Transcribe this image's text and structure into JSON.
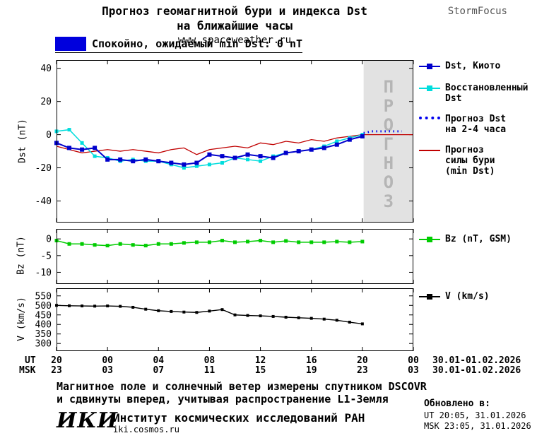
{
  "header": {
    "title_line1": "Прогноз геомагнитной бури и индекса Dst",
    "title_line2": "на ближайшие часы",
    "site": "www.spaceweather.ru",
    "brand": "StormFocus"
  },
  "status": {
    "label": "Спокойно, ожидаемый min Dst: 0 nT"
  },
  "colors": {
    "status_box": "#0000dd",
    "dst_kyoto": "#0000cc",
    "restored": "#00dddd",
    "forecast_dst": "#0000ee",
    "storm": "#c00000",
    "bz": "#00cc00",
    "v": "#000000",
    "band": "#e2e2e2",
    "band_text": "#b5b5b5"
  },
  "legend": {
    "dst_kyoto": "Dst, Киото",
    "restored_line1": "Восстановленный",
    "restored_line2": "Dst",
    "forecast_line1": "Прогноз Dst",
    "forecast_line2": "на 2-4 часа",
    "storm_line1": "Прогноз",
    "storm_line2": "силы бури",
    "storm_line3": "(min Dst)",
    "bz": "Bz (nT, GSM)",
    "v": "V (km/s)"
  },
  "xaxis": {
    "ut_label": "UT",
    "msk_label": "MSK",
    "tick_hours": [
      0,
      4,
      8,
      12,
      16,
      20,
      24,
      28
    ],
    "ut_ticks": [
      "20",
      "00",
      "04",
      "08",
      "12",
      "16",
      "20",
      "00"
    ],
    "msk_ticks": [
      "23",
      "03",
      "07",
      "11",
      "15",
      "19",
      "23",
      "03"
    ],
    "ut_date": "30.01-01.02.2026",
    "msk_date": "30.01-01.02.2026"
  },
  "footer": {
    "note_line1": "Магнитное поле и солнечный ветер измерены спутником DSCOVR",
    "note_line2": "и сдвинуты вперед, учитывая распространение L1-Земля",
    "updated_label": "Обновлено в:",
    "updated_ut": "UT  20:05, 31.01.2026",
    "updated_msk": "MSK 23:05, 31.01.2026",
    "logo": "ИКИ",
    "institute": "Институт космических исследований РАН",
    "site": "iki.cosmos.ru"
  },
  "chart_data": [
    {
      "type": "line",
      "title": "Прогноз геомагнитной бури и индекса Dst на ближайшие часы",
      "ylabel": "Dst (nT)",
      "ylim": [
        -53,
        45
      ],
      "yticks": [
        40,
        20,
        0,
        -20,
        -40
      ],
      "xlim": [
        0,
        28
      ],
      "xtick_hours": [
        0,
        4,
        8,
        12,
        16,
        20,
        24,
        28
      ],
      "grid": false,
      "legend_position": "right",
      "forecast_region": {
        "start": 24.1,
        "end": 28,
        "label": "ПРОГНОЗ"
      },
      "series": [
        {
          "name": "Прогноз силы бури (min Dst)",
          "color": "#c00000",
          "marker": "none",
          "width": 1.3,
          "x": [
            0,
            1,
            2,
            3,
            4,
            5,
            6,
            7,
            8,
            9,
            10,
            11,
            12,
            13,
            14,
            15,
            16,
            17,
            18,
            19,
            20,
            21,
            22,
            23,
            24,
            25,
            26,
            27,
            28
          ],
          "y": [
            -7,
            -9,
            -11,
            -10,
            -9,
            -10,
            -9,
            -10,
            -11,
            -9,
            -8,
            -12,
            -9,
            -8,
            -7,
            -8,
            -5,
            -6,
            -4,
            -5,
            -3,
            -4,
            -2,
            -1,
            0,
            0,
            0,
            0,
            0
          ]
        },
        {
          "name": "Восстановленный Dst",
          "color": "#00dddd",
          "marker": "square",
          "marker_size": 5,
          "width": 1.5,
          "x": [
            0,
            1,
            2,
            3,
            4,
            5,
            6,
            7,
            8,
            9,
            10,
            11,
            12,
            13,
            14,
            15,
            16,
            17,
            18,
            19,
            20,
            21,
            22,
            23,
            24
          ],
          "y": [
            2,
            3,
            -5,
            -13,
            -14,
            -16,
            -15,
            -16,
            -16,
            -18,
            -20,
            -19,
            -18,
            -17,
            -14,
            -15,
            -16,
            -13,
            -11,
            -10,
            -9,
            -7,
            -4,
            -2,
            0
          ]
        },
        {
          "name": "Dst, Киото",
          "color": "#0000cc",
          "marker": "square",
          "marker_size": 6,
          "width": 2,
          "x": [
            0,
            1,
            2,
            3,
            4,
            5,
            6,
            7,
            8,
            9,
            10,
            11,
            12,
            13,
            14,
            15,
            16,
            17,
            18,
            19,
            20,
            21,
            22,
            23,
            24
          ],
          "y": [
            -5,
            -8,
            -9,
            -8,
            -15,
            -15,
            -16,
            -15,
            -16,
            -17,
            -18,
            -17,
            -12,
            -13,
            -14,
            -12,
            -13,
            -14,
            -11,
            -10,
            -9,
            -8,
            -6,
            -3,
            -1
          ]
        },
        {
          "name": "Прогноз Dst на 2-4 часа",
          "color": "#0000ee",
          "marker": "none",
          "width": 3,
          "dash": "1.5 4.5",
          "x": [
            24.1,
            24.7,
            25.3,
            25.9,
            26.5,
            27.1
          ],
          "y": [
            1,
            2,
            2,
            2,
            2,
            2
          ]
        }
      ]
    },
    {
      "type": "line",
      "ylabel": "Bz (nT)",
      "ylim": [
        -13.5,
        3
      ],
      "yticks": [
        0,
        -5,
        -10
      ],
      "xlim": [
        0,
        28
      ],
      "xtick_hours": [
        0,
        4,
        8,
        12,
        16,
        20,
        24,
        28
      ],
      "grid": false,
      "series": [
        {
          "name": "Bz (nT, GSM)",
          "color": "#00cc00",
          "marker": "square",
          "marker_size": 5,
          "width": 1.5,
          "x": [
            0,
            1,
            2,
            3,
            4,
            5,
            6,
            7,
            8,
            9,
            10,
            11,
            12,
            13,
            14,
            15,
            16,
            17,
            18,
            19,
            20,
            21,
            22,
            23,
            24
          ],
          "y": [
            -0.5,
            -1.5,
            -1.5,
            -1.8,
            -2,
            -1.5,
            -1.8,
            -2,
            -1.5,
            -1.5,
            -1.2,
            -1,
            -1,
            -0.5,
            -1,
            -0.8,
            -0.5,
            -1,
            -0.6,
            -1,
            -1,
            -1,
            -0.8,
            -1,
            -0.8
          ]
        }
      ]
    },
    {
      "type": "line",
      "ylabel": "V (km/s)",
      "ylim": [
        260,
        590
      ],
      "yticks": [
        550,
        500,
        450,
        400,
        350,
        300
      ],
      "xlim": [
        0,
        28
      ],
      "xtick_hours": [
        0,
        4,
        8,
        12,
        16,
        20,
        24,
        28
      ],
      "grid": false,
      "series": [
        {
          "name": "V (km/s)",
          "color": "#000000",
          "marker": "square",
          "marker_size": 4,
          "width": 1.4,
          "x": [
            0,
            1,
            2,
            3,
            4,
            5,
            6,
            7,
            8,
            9,
            10,
            11,
            12,
            13,
            14,
            15,
            16,
            17,
            18,
            19,
            20,
            21,
            22,
            23,
            24
          ],
          "y": [
            500,
            498,
            497,
            496,
            497,
            495,
            490,
            480,
            472,
            468,
            465,
            463,
            470,
            478,
            450,
            447,
            445,
            442,
            438,
            435,
            432,
            428,
            422,
            412,
            403
          ]
        }
      ]
    }
  ]
}
